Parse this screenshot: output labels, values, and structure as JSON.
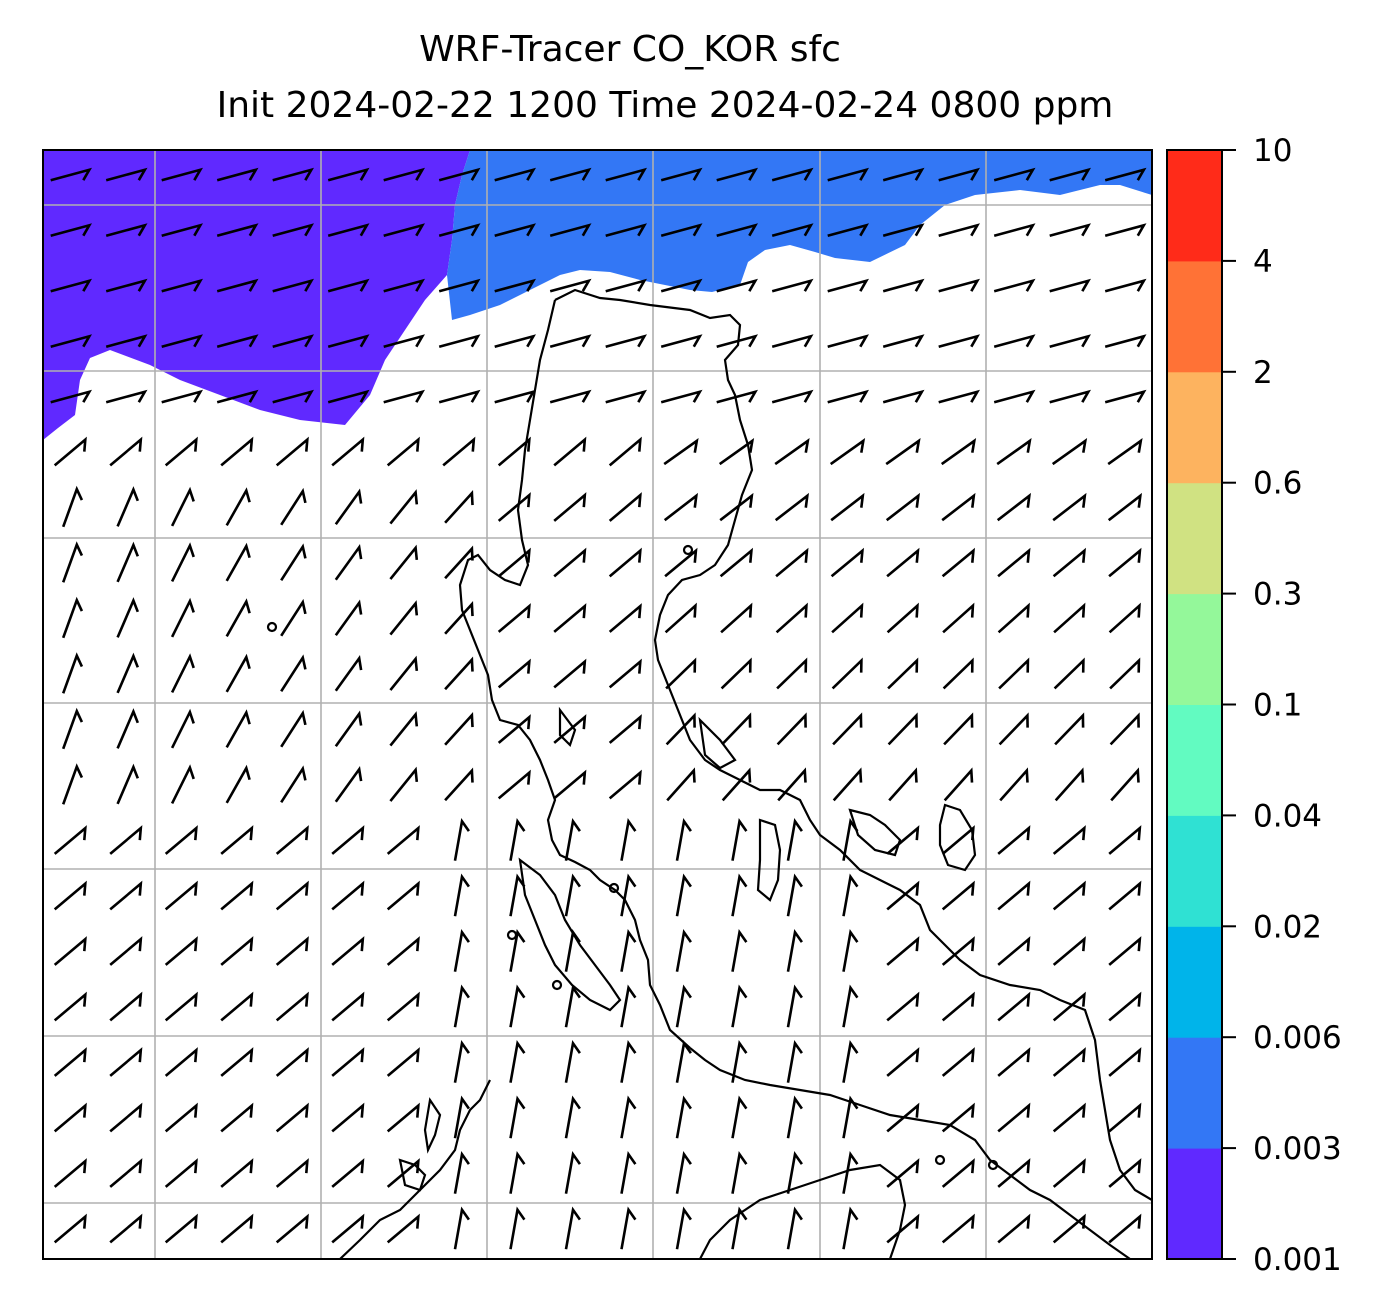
{
  "title_line1": "WRF-Tracer CO_KOR sfc",
  "title_line2": "Init 2024-02-22 1200 Time 2024-02-24 0800 ppm",
  "chart_data": {
    "type": "heatmap",
    "title": "WRF-Tracer CO_KOR sfc",
    "subtitle": "Init 2024-02-22 1200 Time 2024-02-24 0800 ppm",
    "variable": "CO_KOR",
    "level": "sfc",
    "units": "ppm",
    "grid": true,
    "colorbar": {
      "placement": "right",
      "levels": [
        "0.001",
        "0.003",
        "0.006",
        "0.02",
        "0.04",
        "0.1",
        "0.3",
        "0.6",
        "2",
        "4",
        "10"
      ],
      "colors": [
        "#6029ff",
        "#3377f5",
        "#00b4ea",
        "#2fe1d3",
        "#62fbc1",
        "#94f89a",
        "#d0e282",
        "#fdb35f",
        "#ff7236",
        "#ff2b19"
      ]
    },
    "filled_regions": [
      {
        "level_range": [
          "0.001",
          "0.003"
        ],
        "color": "#6029ff",
        "location": "northwest"
      },
      {
        "level_range": [
          "0.003",
          "0.006"
        ],
        "color": "#3377f5",
        "location": "north"
      }
    ],
    "overlays": [
      "wind barbs",
      "coastlines"
    ]
  }
}
